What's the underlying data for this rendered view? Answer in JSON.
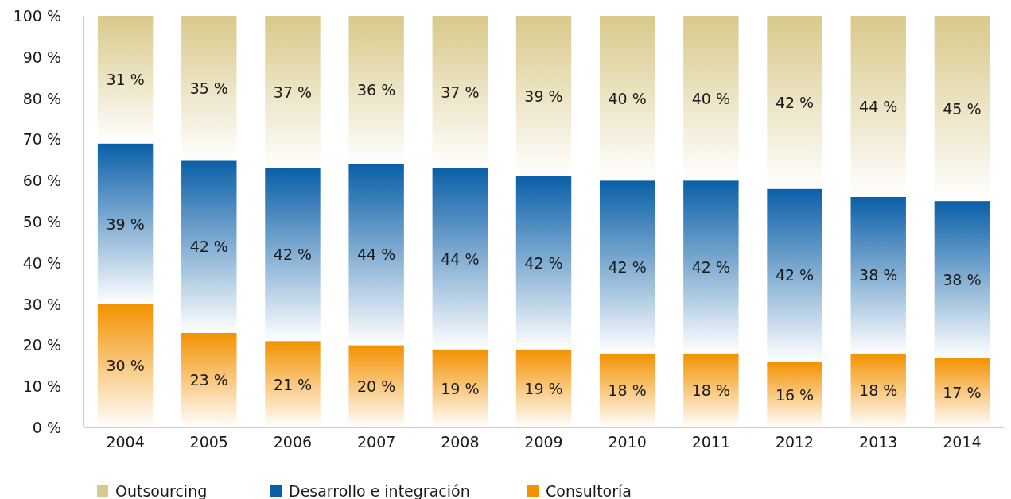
{
  "chart_data": {
    "type": "bar",
    "stacked": true,
    "categories": [
      "2004",
      "2005",
      "2006",
      "2007",
      "2008",
      "2009",
      "2010",
      "2011",
      "2012",
      "2013",
      "2014"
    ],
    "series": [
      {
        "name": "Consultoría",
        "color": "#f39200",
        "values": [
          30,
          23,
          21,
          20,
          19,
          19,
          18,
          18,
          16,
          18,
          17
        ],
        "value_labels": [
          "30 %",
          "23 %",
          "21 %",
          "20 %",
          "19 %",
          "19 %",
          "18 %",
          "18 %",
          "16 %",
          "18 %",
          "17 %"
        ]
      },
      {
        "name": "Desarrollo e integración",
        "color": "#0a5fa8",
        "values": [
          39,
          42,
          42,
          44,
          44,
          42,
          42,
          42,
          42,
          38,
          38
        ],
        "value_labels": [
          "39 %",
          "42 %",
          "42 %",
          "44 %",
          "44 %",
          "42 %",
          "42 %",
          "42 %",
          "42 %",
          "38 %",
          "38 %"
        ]
      },
      {
        "name": "Outsourcing",
        "color": "#d9c98a",
        "values": [
          31,
          35,
          37,
          36,
          37,
          39,
          40,
          40,
          42,
          44,
          45
        ],
        "value_labels": [
          "31 %",
          "35 %",
          "37 %",
          "36 %",
          "37 %",
          "39 %",
          "40 %",
          "40 %",
          "42 %",
          "44 %",
          "45 %"
        ]
      }
    ],
    "ylim": [
      0,
      100
    ],
    "yticks": [
      {
        "value": 0,
        "label": "0 %"
      },
      {
        "value": 10,
        "label": "10 %"
      },
      {
        "value": 20,
        "label": "20 %"
      },
      {
        "value": 30,
        "label": "30 %"
      },
      {
        "value": 40,
        "label": "40 %"
      },
      {
        "value": 50,
        "label": "50 %"
      },
      {
        "value": 60,
        "label": "60 %"
      },
      {
        "value": 70,
        "label": "70 %"
      },
      {
        "value": 80,
        "label": "80 %"
      },
      {
        "value": 90,
        "label": "90 %"
      },
      {
        "value": 100,
        "label": "100 %"
      }
    ],
    "grid": false,
    "legend": "bottom"
  }
}
